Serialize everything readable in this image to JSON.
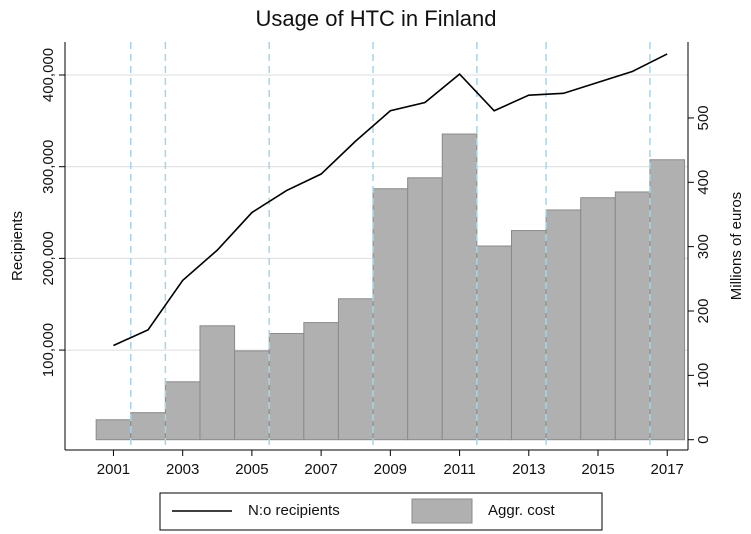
{
  "chart_data": {
    "type": "combo",
    "title": "Usage of HTC in Finland",
    "ylabel": "Recipients",
    "y2label": "Millions of euros",
    "x": [
      2001,
      2002,
      2003,
      2004,
      2005,
      2006,
      2007,
      2008,
      2009,
      2010,
      2011,
      2012,
      2013,
      2014,
      2015,
      2016,
      2017
    ],
    "xlim": [
      1999.6,
      2017.6
    ],
    "xticks": [
      2001,
      2003,
      2005,
      2007,
      2009,
      2011,
      2013,
      2015,
      2017
    ],
    "ylim": [
      -9000,
      436000
    ],
    "yticks": [
      {
        "value": 100000,
        "label": "100,000"
      },
      {
        "value": 200000,
        "label": "200,000"
      },
      {
        "value": 300000,
        "label": "300,000"
      },
      {
        "value": 400000,
        "label": "400,000"
      }
    ],
    "y2lim": [
      -16,
      618
    ],
    "y2ticks": [
      0,
      100,
      200,
      300,
      400,
      500
    ],
    "grid": true,
    "legend": "bottom",
    "vlines": [
      2001.5,
      2002.5,
      2005.5,
      2008.5,
      2011.5,
      2013.5,
      2016.5
    ],
    "vline_color": "#a8d4e6",
    "series": [
      {
        "name": "N:o recipients",
        "type": "line",
        "axis": "y",
        "color": "#000000",
        "values": [
          105000,
          122000,
          176000,
          209000,
          250000,
          274000,
          292000,
          328000,
          361000,
          370000,
          401000,
          361000,
          378000,
          380000,
          392000,
          404000,
          423000
        ]
      },
      {
        "name": "Aggr. cost",
        "type": "bar",
        "axis": "y2",
        "color": "#b0b0b0",
        "values": [
          31,
          42,
          90,
          177,
          138,
          165,
          182,
          219,
          390,
          407,
          475,
          301,
          325,
          357,
          376,
          385,
          435
        ]
      }
    ]
  }
}
